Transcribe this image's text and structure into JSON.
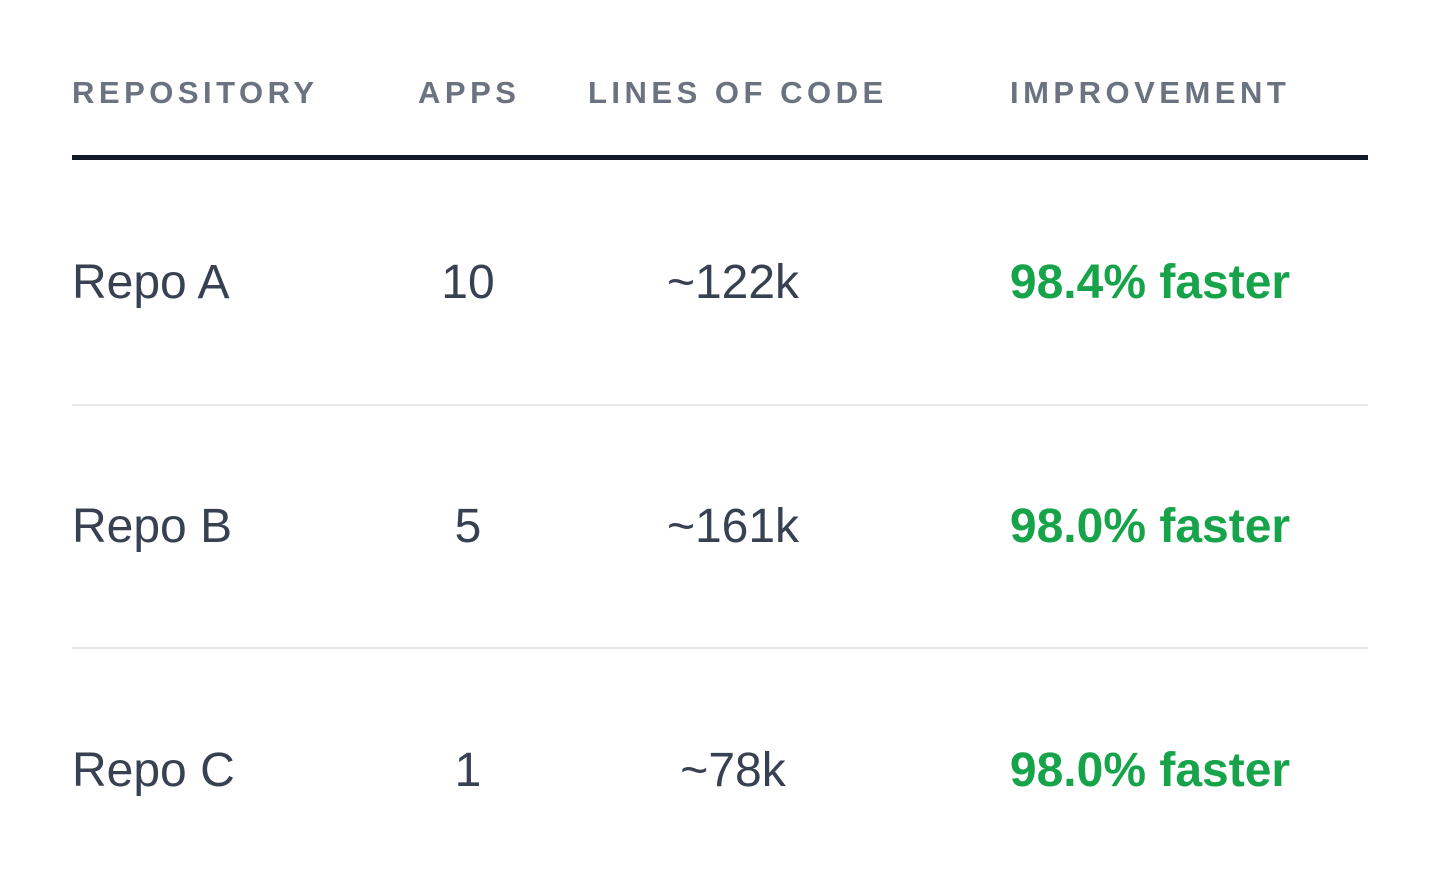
{
  "table": {
    "headers": {
      "repository": "REPOSITORY",
      "apps": "APPS",
      "lines_of_code": "LINES OF CODE",
      "improvement": "IMPROVEMENT"
    },
    "rows": [
      {
        "repository": "Repo A",
        "apps": "10",
        "lines_of_code": "~122k",
        "improvement": "98.4% faster"
      },
      {
        "repository": "Repo B",
        "apps": "5",
        "lines_of_code": "~161k",
        "improvement": "98.0% faster"
      },
      {
        "repository": "Repo C",
        "apps": "1",
        "lines_of_code": "~78k",
        "improvement": "98.0% faster"
      }
    ]
  },
  "colors": {
    "header_text": "#6b7280",
    "body_text": "#374151",
    "improvement_text": "#16a34a",
    "header_rule": "#111827",
    "row_divider": "#e5e7eb"
  }
}
